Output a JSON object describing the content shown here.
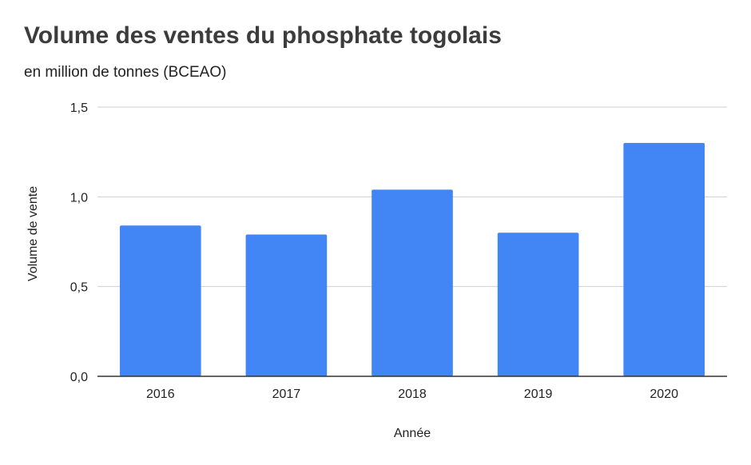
{
  "chart_data": {
    "type": "bar",
    "title": "Volume des ventes du phosphate togolais",
    "subtitle": "en million de tonnes (BCEAO)",
    "xlabel": "Année",
    "ylabel": "Volume de vente",
    "categories": [
      "2016",
      "2017",
      "2018",
      "2019",
      "2020"
    ],
    "values": [
      0.84,
      0.79,
      1.04,
      0.8,
      1.3
    ],
    "ylim": [
      0,
      1.5
    ],
    "yticks": [
      {
        "value": 0,
        "label": "0,0"
      },
      {
        "value": 0.5,
        "label": "0,5"
      },
      {
        "value": 1.0,
        "label": "1,0"
      },
      {
        "value": 1.5,
        "label": "1,5"
      }
    ],
    "grid": true,
    "legend": "none",
    "bar_color": "#4285f4"
  }
}
